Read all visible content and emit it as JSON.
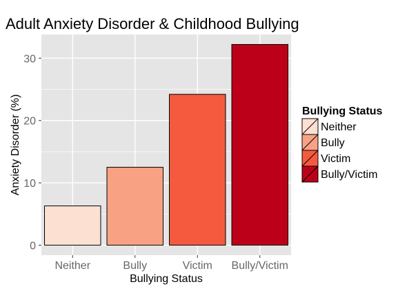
{
  "chart_data": {
    "type": "bar",
    "title": "Adult Anxiety Disorder & Childhood Bullying",
    "xlabel": "Bullying Status",
    "ylabel": "Anxiety Disorder (%)",
    "categories": [
      "Neither",
      "Bully",
      "Victim",
      "Bully/Victim"
    ],
    "values": [
      6.3,
      12.5,
      24.2,
      32.2
    ],
    "colors": [
      "#FCE0D2",
      "#F9A283",
      "#F55A3F",
      "#BD0019"
    ],
    "ylim": [
      -1.6,
      33.8
    ],
    "yticks": [
      0,
      10,
      20,
      30
    ],
    "ytick_labels": [
      "0",
      "10",
      "20",
      "30"
    ],
    "grid": true,
    "panel_background": "#E5E5E5",
    "grid_color": "#FFFFFF",
    "bar_border_color": "#000000",
    "legend": {
      "title": "Bullying Status",
      "placement": "right",
      "entries": [
        "Neither",
        "Bully",
        "Victim",
        "Bully/Victim"
      ]
    }
  }
}
